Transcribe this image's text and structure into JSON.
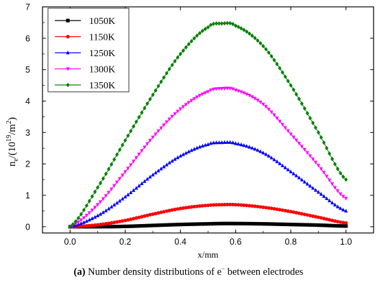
{
  "chart_data": {
    "type": "line",
    "xlabel": "x/mm",
    "ylabel_parts": {
      "base": "n",
      "sub": "e",
      "slash": "/(10",
      "sup1": "19",
      "unit": "/m",
      "sup2": "2",
      "close": ")"
    },
    "xlim": [
      -0.1,
      1.1
    ],
    "ylim": [
      -0.2,
      7.0
    ],
    "xticks": [
      "0.0",
      "0.2",
      "0.4",
      "0.6",
      "0.8",
      "1.0"
    ],
    "xtick_values": [
      0.0,
      0.2,
      0.4,
      0.6,
      0.8,
      1.0
    ],
    "yticks": [
      "0",
      "1",
      "2",
      "3",
      "4",
      "5",
      "6",
      "7"
    ],
    "ytick_values": [
      0,
      1,
      2,
      3,
      4,
      5,
      6,
      7
    ],
    "legend_position": "top-left",
    "series": [
      {
        "name": "1050K",
        "color": "#000000",
        "marker": "square",
        "x": [
          0.0,
          0.1,
          0.2,
          0.3,
          0.4,
          0.5,
          0.55,
          0.6,
          0.7,
          0.8,
          0.9,
          1.0
        ],
        "y": [
          0.0,
          0.0,
          0.01,
          0.04,
          0.07,
          0.09,
          0.1,
          0.1,
          0.09,
          0.07,
          0.05,
          0.02
        ]
      },
      {
        "name": "1150K",
        "color": "#ff0000",
        "marker": "circle",
        "x": [
          0.0,
          0.1,
          0.2,
          0.3,
          0.4,
          0.5,
          0.55,
          0.6,
          0.7,
          0.8,
          0.9,
          1.0
        ],
        "y": [
          0.0,
          0.06,
          0.2,
          0.4,
          0.58,
          0.68,
          0.7,
          0.7,
          0.62,
          0.48,
          0.3,
          0.12
        ]
      },
      {
        "name": "1250K",
        "color": "#0000ff",
        "marker": "triangle-up",
        "x": [
          0.0,
          0.1,
          0.2,
          0.3,
          0.4,
          0.5,
          0.55,
          0.6,
          0.7,
          0.8,
          0.9,
          1.0
        ],
        "y": [
          0.0,
          0.35,
          0.95,
          1.65,
          2.25,
          2.62,
          2.68,
          2.65,
          2.35,
          1.75,
          1.1,
          0.5
        ]
      },
      {
        "name": "1300K",
        "color": "#ff00ff",
        "marker": "triangle-down",
        "x": [
          0.0,
          0.1,
          0.2,
          0.3,
          0.4,
          0.5,
          0.55,
          0.6,
          0.7,
          0.8,
          0.9,
          1.0
        ],
        "y": [
          0.0,
          0.7,
          1.75,
          2.85,
          3.75,
          4.3,
          4.4,
          4.35,
          3.9,
          2.95,
          1.95,
          0.9
        ]
      },
      {
        "name": "1350K",
        "color": "#008000",
        "marker": "diamond",
        "x": [
          0.0,
          0.1,
          0.2,
          0.3,
          0.4,
          0.5,
          0.55,
          0.6,
          0.7,
          0.8,
          0.9,
          1.0
        ],
        "y": [
          0.0,
          1.25,
          2.75,
          4.2,
          5.5,
          6.35,
          6.47,
          6.4,
          5.75,
          4.5,
          3.0,
          1.5
        ]
      }
    ]
  },
  "caption": {
    "label": "(a)",
    "text": " Number density distributions of e",
    "sup": "−",
    "rest": " between electrodes"
  }
}
